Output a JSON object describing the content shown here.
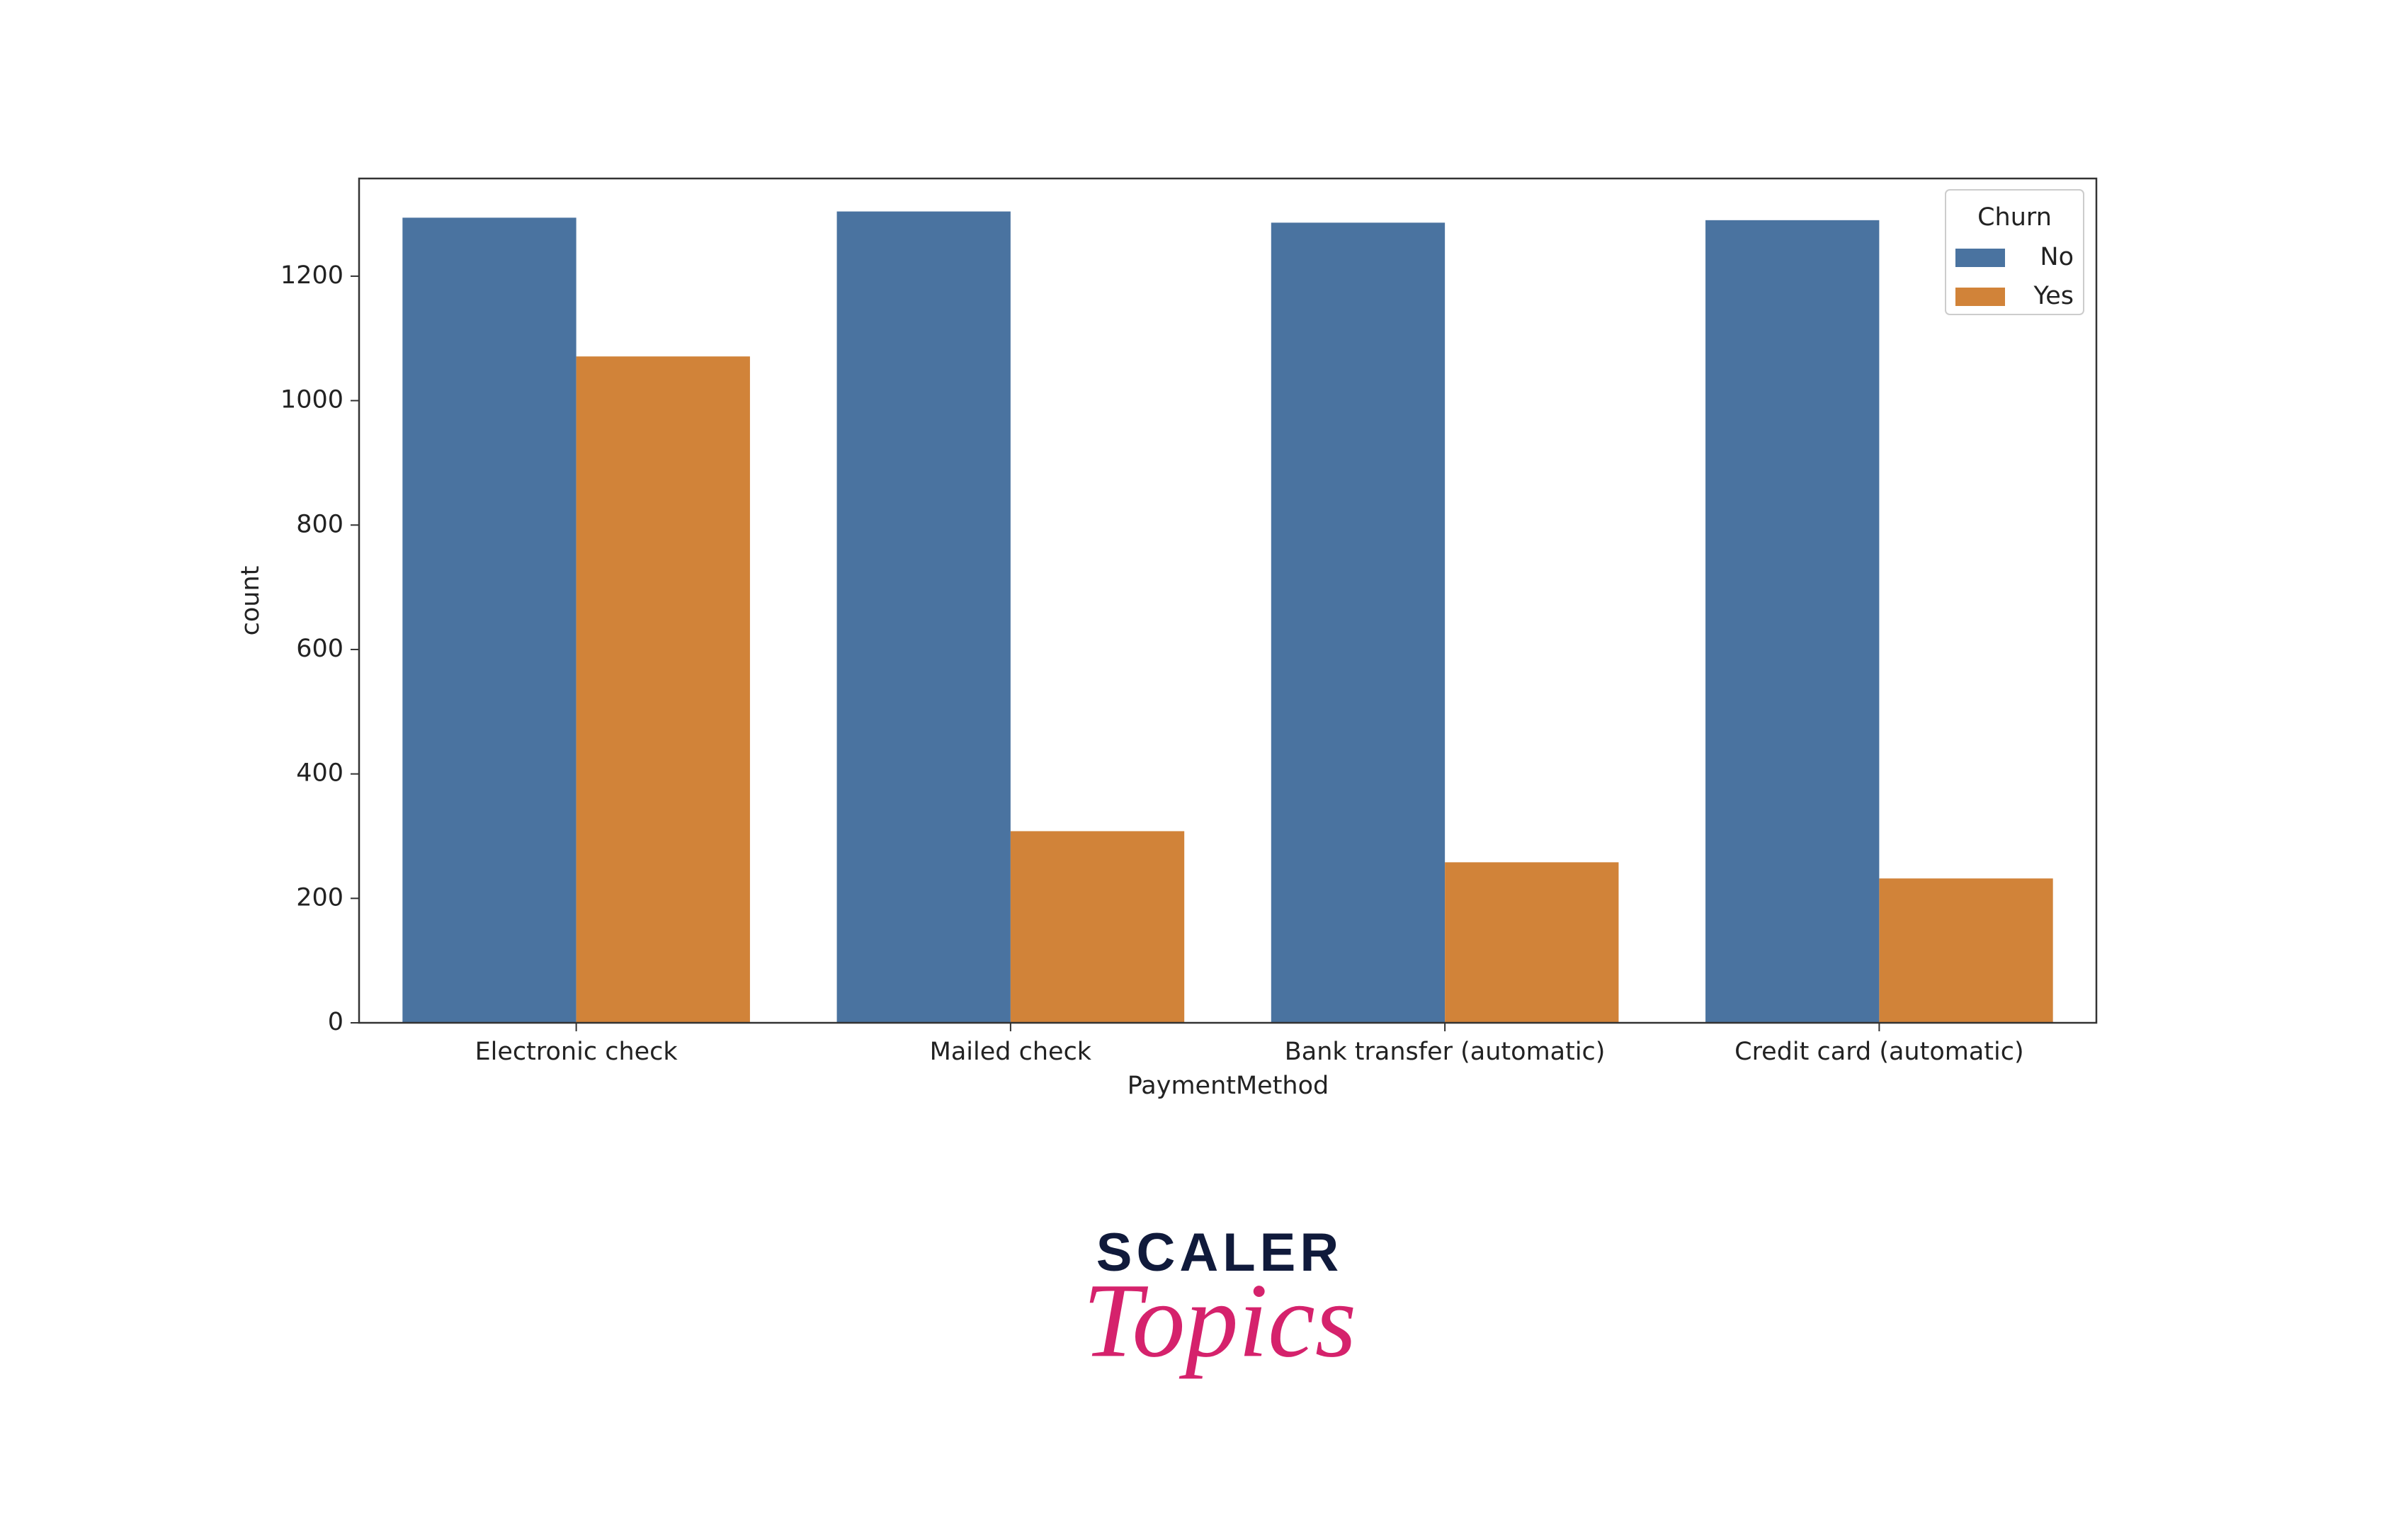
{
  "chart_data": {
    "type": "grouped_bar",
    "x_label": "PaymentMethod",
    "y_label": "count",
    "categories": [
      "Electronic check",
      "Mailed check",
      "Bank transfer (automatic)",
      "Credit card (automatic)"
    ],
    "series": [
      {
        "name": "No",
        "color": "#4a73a0",
        "values": [
          1294,
          1304,
          1286,
          1290
        ]
      },
      {
        "name": "Yes",
        "color": "#d18339",
        "values": [
          1071,
          308,
          258,
          232
        ]
      }
    ],
    "legend_title": "Churn",
    "legend": "upper right",
    "ylim": [
      0,
      1357
    ],
    "yticks": [
      0,
      200,
      400,
      600,
      800,
      1000,
      1200
    ],
    "grid": false
  },
  "watermark": {
    "brand": "SCALER",
    "product": "Topics"
  }
}
